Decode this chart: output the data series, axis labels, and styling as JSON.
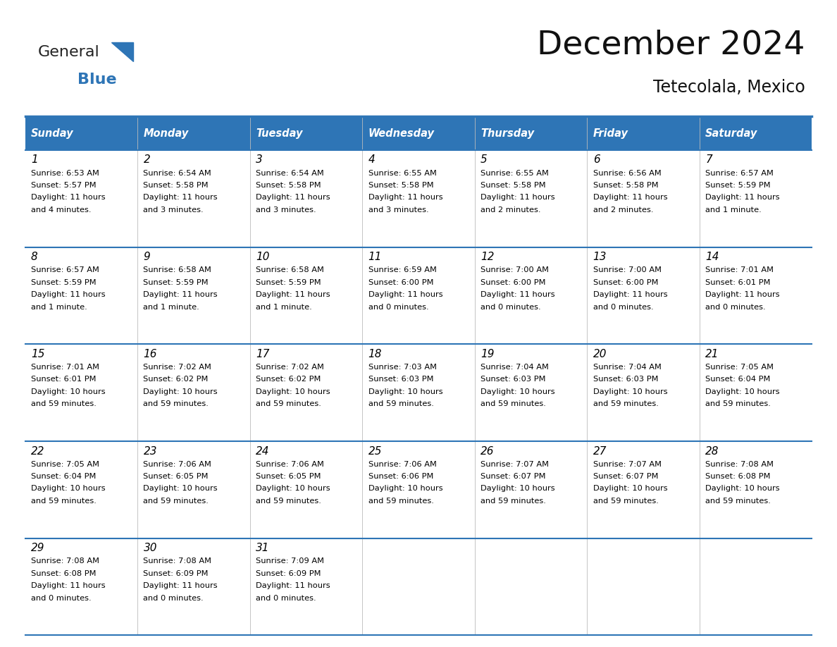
{
  "title": "December 2024",
  "subtitle": "Tetecolala, Mexico",
  "header_color": "#2E75B6",
  "header_text_color": "#FFFFFF",
  "days_of_week": [
    "Sunday",
    "Monday",
    "Tuesday",
    "Wednesday",
    "Thursday",
    "Friday",
    "Saturday"
  ],
  "bg_color": "#FFFFFF",
  "cell_bg_color": "#FFFFFF",
  "border_color": "#2E75B6",
  "text_color": "#000000",
  "calendar_data": [
    [
      {
        "day": 1,
        "sunrise": "6:53 AM",
        "sunset": "5:57 PM",
        "daylight": "11 hours and 4 minutes."
      },
      {
        "day": 2,
        "sunrise": "6:54 AM",
        "sunset": "5:58 PM",
        "daylight": "11 hours and 3 minutes."
      },
      {
        "day": 3,
        "sunrise": "6:54 AM",
        "sunset": "5:58 PM",
        "daylight": "11 hours and 3 minutes."
      },
      {
        "day": 4,
        "sunrise": "6:55 AM",
        "sunset": "5:58 PM",
        "daylight": "11 hours and 3 minutes."
      },
      {
        "day": 5,
        "sunrise": "6:55 AM",
        "sunset": "5:58 PM",
        "daylight": "11 hours and 2 minutes."
      },
      {
        "day": 6,
        "sunrise": "6:56 AM",
        "sunset": "5:58 PM",
        "daylight": "11 hours and 2 minutes."
      },
      {
        "day": 7,
        "sunrise": "6:57 AM",
        "sunset": "5:59 PM",
        "daylight": "11 hours and 1 minute."
      }
    ],
    [
      {
        "day": 8,
        "sunrise": "6:57 AM",
        "sunset": "5:59 PM",
        "daylight": "11 hours and 1 minute."
      },
      {
        "day": 9,
        "sunrise": "6:58 AM",
        "sunset": "5:59 PM",
        "daylight": "11 hours and 1 minute."
      },
      {
        "day": 10,
        "sunrise": "6:58 AM",
        "sunset": "5:59 PM",
        "daylight": "11 hours and 1 minute."
      },
      {
        "day": 11,
        "sunrise": "6:59 AM",
        "sunset": "6:00 PM",
        "daylight": "11 hours and 0 minutes."
      },
      {
        "day": 12,
        "sunrise": "7:00 AM",
        "sunset": "6:00 PM",
        "daylight": "11 hours and 0 minutes."
      },
      {
        "day": 13,
        "sunrise": "7:00 AM",
        "sunset": "6:00 PM",
        "daylight": "11 hours and 0 minutes."
      },
      {
        "day": 14,
        "sunrise": "7:01 AM",
        "sunset": "6:01 PM",
        "daylight": "11 hours and 0 minutes."
      }
    ],
    [
      {
        "day": 15,
        "sunrise": "7:01 AM",
        "sunset": "6:01 PM",
        "daylight": "10 hours and 59 minutes."
      },
      {
        "day": 16,
        "sunrise": "7:02 AM",
        "sunset": "6:02 PM",
        "daylight": "10 hours and 59 minutes."
      },
      {
        "day": 17,
        "sunrise": "7:02 AM",
        "sunset": "6:02 PM",
        "daylight": "10 hours and 59 minutes."
      },
      {
        "day": 18,
        "sunrise": "7:03 AM",
        "sunset": "6:03 PM",
        "daylight": "10 hours and 59 minutes."
      },
      {
        "day": 19,
        "sunrise": "7:04 AM",
        "sunset": "6:03 PM",
        "daylight": "10 hours and 59 minutes."
      },
      {
        "day": 20,
        "sunrise": "7:04 AM",
        "sunset": "6:03 PM",
        "daylight": "10 hours and 59 minutes."
      },
      {
        "day": 21,
        "sunrise": "7:05 AM",
        "sunset": "6:04 PM",
        "daylight": "10 hours and 59 minutes."
      }
    ],
    [
      {
        "day": 22,
        "sunrise": "7:05 AM",
        "sunset": "6:04 PM",
        "daylight": "10 hours and 59 minutes."
      },
      {
        "day": 23,
        "sunrise": "7:06 AM",
        "sunset": "6:05 PM",
        "daylight": "10 hours and 59 minutes."
      },
      {
        "day": 24,
        "sunrise": "7:06 AM",
        "sunset": "6:05 PM",
        "daylight": "10 hours and 59 minutes."
      },
      {
        "day": 25,
        "sunrise": "7:06 AM",
        "sunset": "6:06 PM",
        "daylight": "10 hours and 59 minutes."
      },
      {
        "day": 26,
        "sunrise": "7:07 AM",
        "sunset": "6:07 PM",
        "daylight": "10 hours and 59 minutes."
      },
      {
        "day": 27,
        "sunrise": "7:07 AM",
        "sunset": "6:07 PM",
        "daylight": "10 hours and 59 minutes."
      },
      {
        "day": 28,
        "sunrise": "7:08 AM",
        "sunset": "6:08 PM",
        "daylight": "10 hours and 59 minutes."
      }
    ],
    [
      {
        "day": 29,
        "sunrise": "7:08 AM",
        "sunset": "6:08 PM",
        "daylight": "11 hours and 0 minutes."
      },
      {
        "day": 30,
        "sunrise": "7:08 AM",
        "sunset": "6:09 PM",
        "daylight": "11 hours and 0 minutes."
      },
      {
        "day": 31,
        "sunrise": "7:09 AM",
        "sunset": "6:09 PM",
        "daylight": "11 hours and 0 minutes."
      },
      null,
      null,
      null,
      null
    ]
  ]
}
